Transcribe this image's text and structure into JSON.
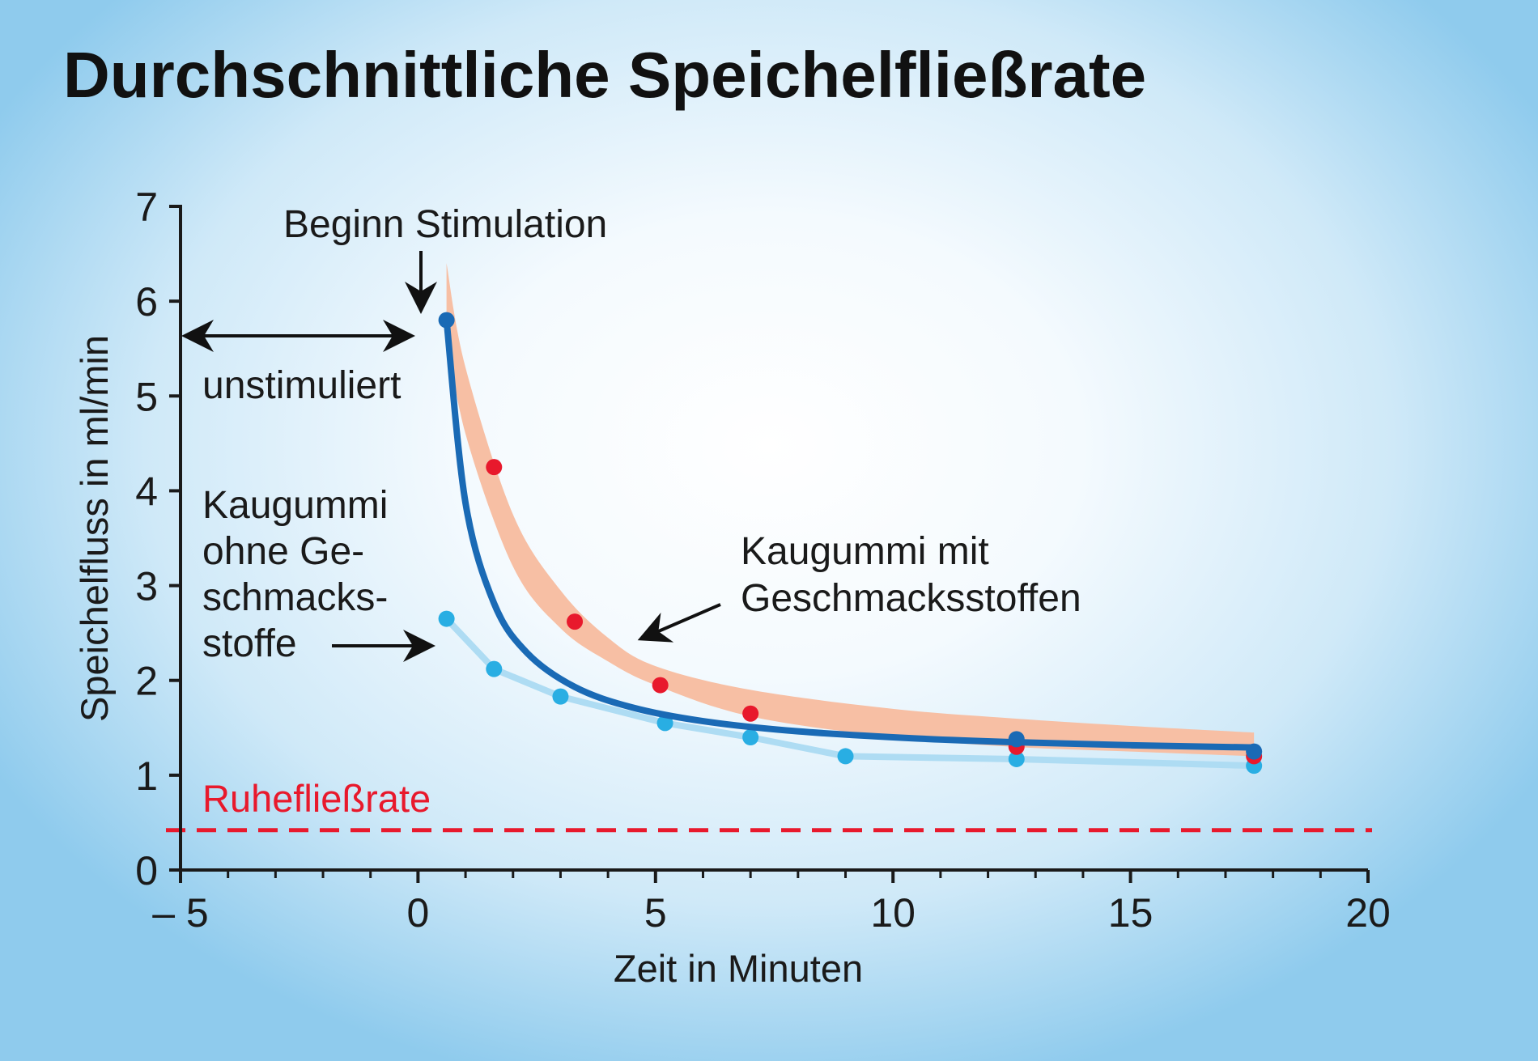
{
  "chart_data": {
    "type": "line",
    "title": "Durchschnittliche Speichelfließrate",
    "xlabel": "Zeit in Minuten",
    "ylabel": "Speichelfluss in ml/min",
    "xlim": [
      -5,
      20
    ],
    "ylim": [
      0,
      7
    ],
    "xticks": [
      -5,
      0,
      5,
      10,
      15,
      20
    ],
    "xtick_labels": [
      "– 5",
      "0",
      "5",
      "10",
      "15",
      "20"
    ],
    "yticks": [
      0,
      1,
      2,
      3,
      4,
      5,
      6,
      7
    ],
    "ytick_labels": [
      "0",
      "1",
      "2",
      "3",
      "4",
      "5",
      "6",
      "7"
    ],
    "series": [
      {
        "name": "Kaugummi mit Geschmacksstoffen",
        "color": "#1a6ab5",
        "x": [
          0.6,
          12.6,
          17.6
        ],
        "values": [
          5.8,
          1.38,
          1.25
        ]
      },
      {
        "name": "Kaugummi mit Geschmacksstoffen (Messpunkte)",
        "color": "#e8192c",
        "x": [
          1.6,
          3.3,
          5.1,
          7.0,
          12.6,
          17.6
        ],
        "values": [
          4.25,
          2.62,
          1.95,
          1.65,
          1.3,
          1.2
        ]
      },
      {
        "name": "Kaugummi ohne Geschmacksstoffe",
        "color": "#29aee3",
        "x": [
          0.6,
          1.6,
          3.0,
          5.2,
          7.0,
          9.0,
          12.6,
          17.6
        ],
        "values": [
          2.65,
          2.12,
          1.83,
          1.55,
          1.4,
          1.2,
          1.17,
          1.1
        ]
      }
    ],
    "band": {
      "color": "#f7bfa4",
      "x": [
        0.6,
        1.0,
        2.0,
        3.0,
        4.0,
        5.0,
        7.0,
        10.0,
        12.5,
        15.0,
        17.6
      ],
      "upper": [
        6.4,
        5.3,
        3.75,
        2.95,
        2.45,
        2.15,
        1.9,
        1.7,
        1.6,
        1.52,
        1.45
      ],
      "lower": [
        5.7,
        4.6,
        3.2,
        2.55,
        2.2,
        1.95,
        1.62,
        1.4,
        1.3,
        1.25,
        1.2
      ]
    },
    "reference_line": {
      "label": "Ruhefließrate",
      "y": 0.42,
      "color": "#e8192c",
      "style": "dashed"
    },
    "annotations": {
      "stimulation": "Beginn Stimulation",
      "unstimulated": "unstimuliert",
      "without_flavor": [
        "Kaugummi",
        "ohne Ge-",
        "schmacks-",
        "stoffe"
      ],
      "with_flavor": [
        "Kaugummi mit",
        "Geschmacksstoffen"
      ]
    },
    "grid": false
  },
  "colors": {
    "blue_curve": "#1a6ab5",
    "light_blue_curve": "#aedcf3",
    "band": "#f7bfa4",
    "red_points": "#e8192c",
    "axis": "#1a1a1a"
  }
}
